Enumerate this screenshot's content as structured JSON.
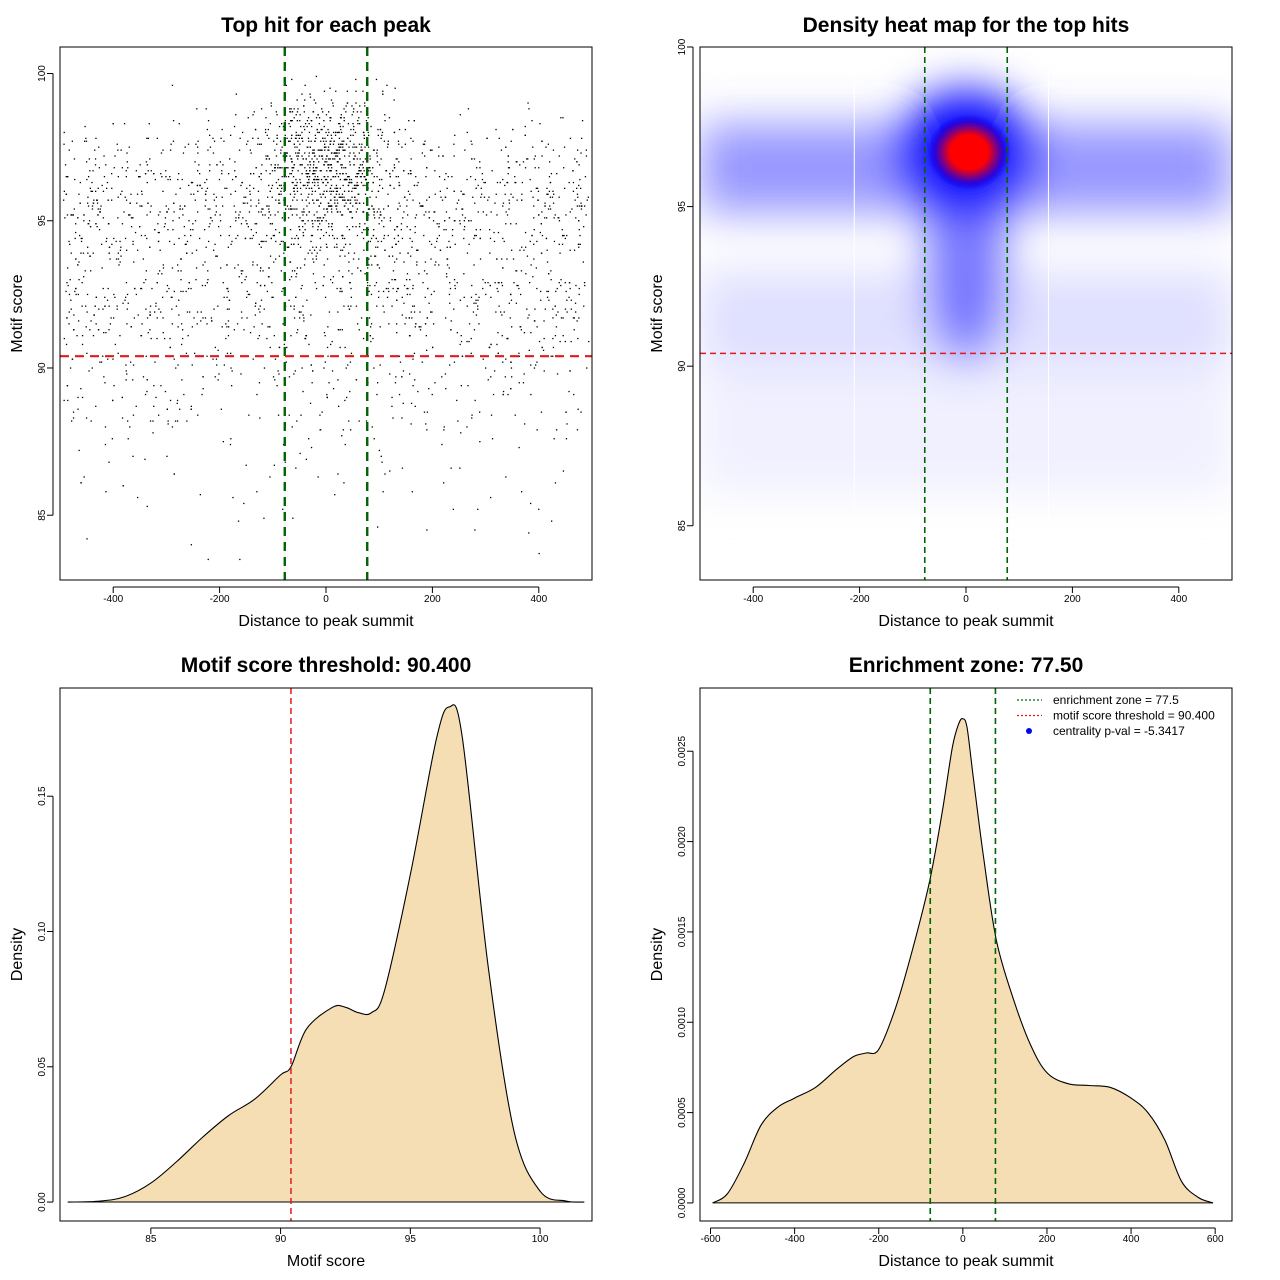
{
  "chart_data": [
    {
      "type": "scatter",
      "title": "Top hit for each peak",
      "xlabel": "Distance to peak summit",
      "ylabel": "Motif score",
      "xlim": [
        -500,
        500
      ],
      "ylim": [
        82.8,
        100.9
      ],
      "xticks": [
        "-400",
        "-200",
        "0",
        "200",
        "400"
      ],
      "xtick_values": [
        -400,
        -200,
        0,
        200,
        400
      ],
      "yticks": [
        "85",
        "90",
        "95",
        "100"
      ],
      "ytick_values": [
        85,
        90,
        95,
        100
      ],
      "point_count": 3000,
      "reference_lines": {
        "enrichment_zone": {
          "x": [
            -77.5,
            77.5
          ],
          "color": "#006400",
          "style": "dashed"
        },
        "motif_score_threshold": {
          "y": 90.4,
          "color": "#e31a1c",
          "style": "dashed"
        }
      },
      "grid": false
    },
    {
      "type": "heatmap",
      "title": "Density heat map for the top hits",
      "xlabel": "Distance to peak summit",
      "ylabel": "Motif score",
      "xlim": [
        -500,
        500
      ],
      "ylim": [
        83.3,
        100
      ],
      "xticks": [
        "-400",
        "-200",
        "0",
        "200",
        "400"
      ],
      "xtick_values": [
        -400,
        -200,
        0,
        200,
        400
      ],
      "yticks": [
        "85",
        "90",
        "95",
        "100"
      ],
      "ytick_values": [
        85,
        90,
        95,
        100
      ],
      "colormap": [
        "#ffffff",
        "#0000ff",
        "#ff0000"
      ],
      "peak_density_at": {
        "x": 0,
        "y": 96.7
      },
      "reference_lines": {
        "enrichment_zone": {
          "x": [
            -77.5,
            77.5
          ],
          "color": "#006400",
          "style": "dashed"
        },
        "motif_score_threshold": {
          "y": 90.4,
          "color": "#e31a1c",
          "style": "dashed"
        }
      },
      "grid": false
    },
    {
      "type": "area",
      "title": "Motif score threshold: 90.400",
      "xlabel": "Motif score",
      "ylabel": "Density",
      "xlim": [
        81.5,
        102
      ],
      "ylim": [
        -0.007,
        0.19
      ],
      "xticks": [
        "85",
        "90",
        "95",
        "100"
      ],
      "xtick_values": [
        85,
        90,
        95,
        100
      ],
      "yticks": [
        "0.00",
        "0.05",
        "0.10",
        "0.15"
      ],
      "ytick_values": [
        0,
        0.05,
        0.1,
        0.15
      ],
      "fill_color": "#f5deb3",
      "line_color": "#000000",
      "series": [
        {
          "x": [
            81.8,
            83,
            84,
            85,
            86,
            87,
            88,
            89,
            90,
            90.4,
            91,
            92,
            92.5,
            93,
            93.5,
            94,
            95,
            96,
            96.5,
            97,
            98,
            99,
            100,
            101,
            101.7
          ],
          "y": [
            0,
            0.0003,
            0.002,
            0.007,
            0.015,
            0.024,
            0.032,
            0.038,
            0.047,
            0.05,
            0.064,
            0.072,
            0.072,
            0.07,
            0.07,
            0.078,
            0.121,
            0.171,
            0.183,
            0.172,
            0.087,
            0.026,
            0.004,
            0.0004,
            0
          ]
        }
      ],
      "reference_lines": {
        "motif_score_threshold": {
          "x": 90.4,
          "color": "#e31a1c",
          "style": "dashed"
        }
      },
      "grid": false
    },
    {
      "type": "area",
      "title": "Enrichment zone: 77.50",
      "xlabel": "Distance to peak summit",
      "ylabel": "Density",
      "xlim": [
        -625,
        640
      ],
      "ylim": [
        -0.0001,
        0.00285
      ],
      "xticks": [
        "-600",
        "-400",
        "-200",
        "0",
        "200",
        "400",
        "600"
      ],
      "xtick_values": [
        -600,
        -400,
        -200,
        0,
        200,
        400,
        600
      ],
      "yticks": [
        "0.0000",
        "0.0005",
        "0.0010",
        "0.0015",
        "0.0020",
        "0.0025"
      ],
      "ytick_values": [
        0,
        0.0005,
        0.001,
        0.0015,
        0.002,
        0.0025
      ],
      "fill_color": "#f5deb3",
      "line_color": "#000000",
      "series": [
        {
          "x": [
            -595,
            -560,
            -520,
            -480,
            -440,
            -400,
            -350,
            -300,
            -260,
            -230,
            -200,
            -160,
            -120,
            -80,
            -50,
            -25,
            -10,
            0,
            10,
            25,
            50,
            80,
            120,
            160,
            200,
            250,
            300,
            350,
            400,
            440,
            480,
            520,
            560,
            595
          ],
          "y": [
            0,
            5e-05,
            0.00022,
            0.00043,
            0.00053,
            0.00058,
            0.00064,
            0.00074,
            0.00081,
            0.00083,
            0.00085,
            0.00108,
            0.0014,
            0.00177,
            0.00215,
            0.00252,
            0.00265,
            0.00268,
            0.00263,
            0.00235,
            0.0019,
            0.00145,
            0.00113,
            0.00088,
            0.00072,
            0.00066,
            0.00065,
            0.00064,
            0.00058,
            0.0005,
            0.00035,
            0.00012,
            3e-05,
            0
          ]
        }
      ],
      "reference_lines": {
        "enrichment_zone": {
          "x": [
            -77.5,
            77.5
          ],
          "color": "#006400",
          "style": "dashed"
        }
      },
      "legend": {
        "placement": "top-right",
        "entries": [
          {
            "label": "enrichment zone = 77.5",
            "symbol": "dotted-line",
            "color": "#006400"
          },
          {
            "label": "motif score threshold = 90.400",
            "symbol": "dotted-line",
            "color": "#e31a1c"
          },
          {
            "label": "centrality p-val = -5.3417",
            "symbol": "dot",
            "color": "#0000ff"
          }
        ]
      },
      "grid": false
    }
  ]
}
